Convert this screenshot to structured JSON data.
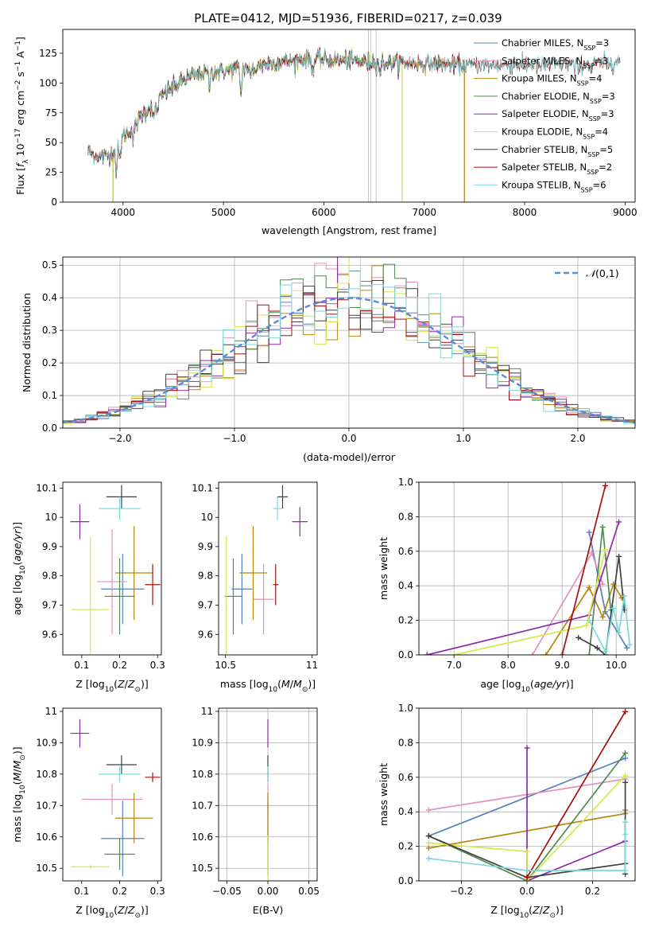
{
  "title": "PLATE=0412, MJD=51936, FIBERID=0217, z=0.039",
  "colors": {
    "chabrier_miles": "#5b7fb8",
    "salpeter_miles": "#e690c0",
    "kroupa_miles": "#b8860b",
    "chabrier_elodie": "#4f8a4f",
    "salpeter_elodie": "#8e2aa8",
    "kroupa_elodie": "#d4e84a",
    "chabrier_stelib": "#404040",
    "salpeter_stelib": "#a01010",
    "kroupa_stelib": "#7ed8d8",
    "normal": "#5a8ad8",
    "grid": "#b0b0b0"
  },
  "legend_labels": [
    "Chabrier MILES, N_SSP=3",
    "Salpeter MILES, N_SSP=3",
    "Kroupa MILES, N_SSP=4",
    "Chabrier ELODIE, N_SSP=3",
    "Salpeter ELODIE, N_SSP=3",
    "Kroupa ELODIE, N_SSP=4",
    "Chabrier STELIB, N_SSP=5",
    "Salpeter STELIB, N_SSP=2",
    "Kroupa STELIB, N_SSP=6"
  ],
  "legend_display": [
    {
      "main": "Chabrier MILES, N",
      "sub": "SSP",
      "tail": "=3"
    },
    {
      "main": "Salpeter MILES, N",
      "sub": "SSP",
      "tail": "=3"
    },
    {
      "main": "Kroupa MILES, N",
      "sub": "SSP",
      "tail": "=4"
    },
    {
      "main": "Chabrier ELODIE, N",
      "sub": "SSP",
      "tail": "=3"
    },
    {
      "main": "Salpeter ELODIE, N",
      "sub": "SSP",
      "tail": "=3"
    },
    {
      "main": "Kroupa ELODIE, N",
      "sub": "SSP",
      "tail": "=4"
    },
    {
      "main": "Chabrier STELIB, N",
      "sub": "SSP",
      "tail": "=5"
    },
    {
      "main": "Salpeter STELIB, N",
      "sub": "SSP",
      "tail": "=2"
    },
    {
      "main": "Kroupa STELIB, N",
      "sub": "SSP",
      "tail": "=6"
    }
  ],
  "chart_data": [
    {
      "id": "spectrum",
      "type": "line",
      "xlabel": "wavelength [Angstrom, rest frame]",
      "ylabel": "Flux [f_λ 10^-17 erg cm^-2 s^-1 A^-1]",
      "xlim": [
        3400,
        9100
      ],
      "ylim": [
        0,
        145
      ],
      "xticks": [
        4000,
        5000,
        6000,
        7000,
        8000,
        9000
      ],
      "yticks": [
        0,
        25,
        50,
        75,
        100,
        125
      ],
      "grid": false,
      "legend": "top-right",
      "continuum": {
        "x": [
          3650,
          3700,
          3800,
          3850,
          3900,
          3950,
          4000,
          4100,
          4200,
          4300,
          4400,
          4500,
          4600,
          4700,
          4800,
          4900,
          5000,
          5100,
          5200,
          5300,
          5400,
          5600,
          5800,
          6000,
          6200,
          6400,
          6600,
          6800,
          7000,
          7200,
          7400,
          7600,
          7800,
          8000,
          8200,
          8400,
          8600,
          8800,
          8950
        ],
        "y": [
          42,
          40,
          38,
          40,
          42,
          50,
          55,
          62,
          75,
          82,
          90,
          97,
          102,
          106,
          108,
          110,
          110,
          112,
          113,
          112,
          116,
          118,
          120,
          120,
          119,
          118,
          117,
          117,
          116,
          116,
          115,
          115,
          115,
          115,
          115,
          116,
          116,
          117,
          118
        ]
      },
      "absorption_lines": [
        {
          "x": 3934,
          "depth": 22
        },
        {
          "x": 3968,
          "depth": 18
        },
        {
          "x": 4102,
          "depth": 10
        },
        {
          "x": 4304,
          "depth": 15
        },
        {
          "x": 4340,
          "depth": 10
        },
        {
          "x": 4861,
          "depth": 12
        },
        {
          "x": 5175,
          "depth": 22
        },
        {
          "x": 5270,
          "depth": 8
        },
        {
          "x": 5893,
          "depth": 10
        },
        {
          "x": 6563,
          "depth": 8
        },
        {
          "x": 8500,
          "depth": 6
        },
        {
          "x": 8542,
          "depth": 7
        },
        {
          "x": 8662,
          "depth": 6
        }
      ],
      "model_ranges": [
        {
          "series": "chabrier_miles",
          "xmin": 3650,
          "xmax": 7400
        },
        {
          "series": "salpeter_miles",
          "xmin": 3650,
          "xmax": 7400
        },
        {
          "series": "kroupa_miles",
          "xmin": 3650,
          "xmax": 7400
        },
        {
          "series": "chabrier_elodie",
          "xmin": 3900,
          "xmax": 6780
        },
        {
          "series": "salpeter_elodie",
          "xmin": 3900,
          "xmax": 6780
        },
        {
          "series": "kroupa_elodie",
          "xmin": 3900,
          "xmax": 6780
        },
        {
          "series": "chabrier_stelib",
          "xmin": 3650,
          "xmax": 8950
        },
        {
          "series": "salpeter_stelib",
          "xmin": 3650,
          "xmax": 8950
        },
        {
          "series": "kroupa_stelib",
          "xmin": 3650,
          "xmax": 8950
        }
      ]
    },
    {
      "id": "residuals",
      "type": "line",
      "xlabel": "(data-model)/error",
      "ylabel": "Normed distribution",
      "xlim": [
        -2.5,
        2.5
      ],
      "ylim": [
        0,
        0.525
      ],
      "xticks": [
        -2,
        -1,
        0,
        1,
        2
      ],
      "yticks": [
        0.0,
        0.1,
        0.2,
        0.3,
        0.4,
        0.5
      ],
      "grid": true,
      "legend": "top-right",
      "legend_entry": "N(0,1)",
      "bin_width": 0.1,
      "gaussian": {
        "mean": 0,
        "sigma": 1
      },
      "histogram_amplitudes": [
        0.4,
        0.41,
        0.39,
        0.42,
        0.38,
        0.4,
        0.41,
        0.39,
        0.4
      ]
    },
    {
      "id": "age_vs_Z",
      "type": "scatter",
      "xlabel": "Z [log10(Z/Z_sun)]",
      "ylabel": "age [log10(age/yr)]",
      "xlim": [
        0.05,
        0.31
      ],
      "ylim": [
        9.53,
        10.12
      ],
      "xticks": [
        0.1,
        0.2,
        0.3
      ],
      "yticks": [
        9.6,
        9.7,
        9.8,
        9.9,
        10.0,
        10.1
      ],
      "grid": false,
      "points": [
        {
          "series": "chabrier_miles",
          "x": 0.208,
          "y": 9.755,
          "xerr": 0.057,
          "yerr": 0.12
        },
        {
          "series": "salpeter_miles",
          "x": 0.18,
          "y": 9.78,
          "xerr": 0.04,
          "yerr": 0.18
        },
        {
          "series": "kroupa_miles",
          "x": 0.238,
          "y": 9.81,
          "xerr": 0.05,
          "yerr": 0.16
        },
        {
          "series": "chabrier_elodie",
          "x": 0.2,
          "y": 9.73,
          "xerr": 0.04,
          "yerr": 0.13
        },
        {
          "series": "salpeter_elodie",
          "x": 0.095,
          "y": 9.985,
          "xerr": 0.025,
          "yerr": 0.06
        },
        {
          "series": "kroupa_elodie",
          "x": 0.123,
          "y": 9.685,
          "xerr": 0.05,
          "yerr": 0.25
        },
        {
          "series": "chabrier_stelib",
          "x": 0.205,
          "y": 10.07,
          "xerr": 0.04,
          "yerr": 0.04
        },
        {
          "series": "salpeter_stelib",
          "x": 0.287,
          "y": 9.77,
          "xerr": 0.02,
          "yerr": 0.07
        },
        {
          "series": "kroupa_stelib",
          "x": 0.2,
          "y": 10.03,
          "xerr": 0.055,
          "yerr": 0.04
        }
      ]
    },
    {
      "id": "age_vs_mass",
      "type": "scatter",
      "xlabel": "mass [log10(M/M_sun)]",
      "ylabel": "",
      "xlim": [
        10.46,
        11.03
      ],
      "ylim": [
        9.53,
        10.12
      ],
      "xticks": [
        10.5,
        11.0
      ],
      "yticks": [
        9.6,
        9.7,
        9.8,
        9.9,
        10.0,
        10.1
      ],
      "grid": false,
      "points": [
        {
          "series": "chabrier_miles",
          "x": 10.595,
          "y": 9.755,
          "xerr": 0.06,
          "yerr": 0.12
        },
        {
          "series": "salpeter_miles",
          "x": 10.72,
          "y": 9.72,
          "xerr": 0.06,
          "yerr": 0.12
        },
        {
          "series": "kroupa_miles",
          "x": 10.66,
          "y": 9.81,
          "xerr": 0.08,
          "yerr": 0.16
        },
        {
          "series": "chabrier_elodie",
          "x": 10.545,
          "y": 9.73,
          "xerr": 0.05,
          "yerr": 0.13
        },
        {
          "series": "salpeter_elodie",
          "x": 10.93,
          "y": 9.985,
          "xerr": 0.045,
          "yerr": 0.05
        },
        {
          "series": "kroupa_elodie",
          "x": 10.505,
          "y": 9.685,
          "xerr": 0.005,
          "yerr": 0.25
        },
        {
          "series": "chabrier_stelib",
          "x": 10.83,
          "y": 10.07,
          "xerr": 0.03,
          "yerr": 0.04
        },
        {
          "series": "salpeter_stelib",
          "x": 10.79,
          "y": 9.77,
          "xerr": 0.015,
          "yerr": 0.07
        },
        {
          "series": "kroupa_stelib",
          "x": 10.8,
          "y": 10.03,
          "xerr": 0.025,
          "yerr": 0.04
        }
      ]
    },
    {
      "id": "weight_vs_age",
      "type": "line",
      "xlabel": "age [log10(age/yr)]",
      "ylabel": "mass weight",
      "xlim": [
        6.35,
        10.35
      ],
      "ylim": [
        0,
        1.0
      ],
      "xticks": [
        7,
        8,
        9,
        10
      ],
      "yticks": [
        0.0,
        0.2,
        0.4,
        0.6,
        0.8,
        1.0
      ],
      "grid": true,
      "series": [
        {
          "series": "chabrier_miles",
          "x": [
            9.5,
            9.8,
            10.2
          ],
          "y": [
            0.71,
            0.25,
            0.04
          ]
        },
        {
          "series": "salpeter_miles",
          "x": [
            8.45,
            9.55,
            9.75
          ],
          "y": [
            0.0,
            0.59,
            0.41
          ]
        },
        {
          "series": "kroupa_miles",
          "x": [
            8.7,
            9.5,
            9.75,
            9.95,
            10.1
          ],
          "y": [
            0.0,
            0.39,
            0.22,
            0.41,
            0.33
          ]
        },
        {
          "series": "chabrier_elodie",
          "x": [
            9.5,
            9.75,
            9.9
          ],
          "y": [
            0.0,
            0.74,
            0.26
          ]
        },
        {
          "series": "salpeter_elodie",
          "x": [
            6.5,
            9.5,
            10.05
          ],
          "y": [
            0.0,
            0.23,
            0.77
          ]
        },
        {
          "series": "kroupa_elodie",
          "x": [
            7.0,
            9.45,
            9.8
          ],
          "y": [
            0.0,
            0.17,
            0.61
          ]
        },
        {
          "series": "chabrier_stelib",
          "x": [
            9.3,
            9.65,
            9.8,
            10.05,
            10.15
          ],
          "y": [
            0.1,
            0.04,
            0.0,
            0.57,
            0.26
          ]
        },
        {
          "series": "salpeter_stelib",
          "x": [
            9.0,
            9.8
          ],
          "y": [
            0.0,
            0.98
          ]
        },
        {
          "series": "kroupa_stelib",
          "x": [
            9.5,
            9.8,
            9.95,
            10.05,
            10.15,
            10.25
          ],
          "y": [
            0.2,
            0.02,
            0.27,
            0.13,
            0.34,
            0.06
          ]
        }
      ]
    },
    {
      "id": "mass_vs_Z",
      "type": "scatter",
      "xlabel": "Z [log10(Z/Z_sun)]",
      "ylabel": "mass [log10(M/M_sun)]",
      "xlim": [
        0.05,
        0.31
      ],
      "ylim": [
        10.46,
        11.01
      ],
      "xticks": [
        0.1,
        0.2,
        0.3
      ],
      "yticks": [
        10.5,
        10.6,
        10.7,
        10.8,
        10.9,
        11.0
      ],
      "grid": false,
      "points": [
        {
          "series": "chabrier_miles",
          "x": 0.208,
          "y": 10.595,
          "xerr": 0.057,
          "yerr": 0.12
        },
        {
          "series": "salpeter_miles",
          "x": 0.18,
          "y": 10.72,
          "xerr": 0.08,
          "yerr": 0.05
        },
        {
          "series": "kroupa_miles",
          "x": 0.238,
          "y": 10.66,
          "xerr": 0.05,
          "yerr": 0.08
        },
        {
          "series": "chabrier_elodie",
          "x": 0.2,
          "y": 10.545,
          "xerr": 0.04,
          "yerr": 0.05
        },
        {
          "series": "salpeter_elodie",
          "x": 0.095,
          "y": 10.93,
          "xerr": 0.025,
          "yerr": 0.045
        },
        {
          "series": "kroupa_elodie",
          "x": 0.123,
          "y": 10.505,
          "xerr": 0.05,
          "yerr": 0.005
        },
        {
          "series": "chabrier_stelib",
          "x": 0.205,
          "y": 10.83,
          "xerr": 0.04,
          "yerr": 0.03
        },
        {
          "series": "salpeter_stelib",
          "x": 0.287,
          "y": 10.79,
          "xerr": 0.02,
          "yerr": 0.015
        },
        {
          "series": "kroupa_stelib",
          "x": 0.2,
          "y": 10.8,
          "xerr": 0.055,
          "yerr": 0.025
        }
      ]
    },
    {
      "id": "mass_vs_ebv",
      "type": "scatter",
      "xlabel": "E(B-V)",
      "ylabel": "",
      "xlim": [
        -0.06,
        0.06
      ],
      "ylim": [
        10.46,
        11.01
      ],
      "xticks": [
        -0.05,
        0.0,
        0.05
      ],
      "yticks": [
        10.5,
        10.6,
        10.7,
        10.8,
        10.9,
        11.0
      ],
      "grid": true,
      "points": [
        {
          "series": "chabrier_miles",
          "x": 0.0,
          "y": 10.595,
          "xerr": 0,
          "yerr": 0.12
        },
        {
          "series": "salpeter_miles",
          "x": 0.0,
          "y": 10.72,
          "xerr": 0,
          "yerr": 0.05
        },
        {
          "series": "kroupa_miles",
          "x": 0.0,
          "y": 10.66,
          "xerr": 0,
          "yerr": 0.08
        },
        {
          "series": "chabrier_elodie",
          "x": 0.0,
          "y": 10.545,
          "xerr": 0,
          "yerr": 0.05
        },
        {
          "series": "salpeter_elodie",
          "x": 0.0,
          "y": 10.93,
          "xerr": 0,
          "yerr": 0.045
        },
        {
          "series": "kroupa_elodie",
          "x": 0.0,
          "y": 10.505,
          "xerr": 0,
          "yerr": 0.1
        },
        {
          "series": "chabrier_stelib",
          "x": 0.0,
          "y": 10.83,
          "xerr": 0,
          "yerr": 0.03
        },
        {
          "series": "salpeter_stelib",
          "x": 0.0,
          "y": 10.79,
          "xerr": 0,
          "yerr": 0.015
        },
        {
          "series": "kroupa_stelib",
          "x": 0.0,
          "y": 10.8,
          "xerr": 0,
          "yerr": 0.025
        }
      ]
    },
    {
      "id": "weight_vs_Z",
      "type": "line",
      "xlabel": "Z [log10(Z/Z_sun)]",
      "ylabel": "mass weight",
      "xlim": [
        -0.33,
        0.33
      ],
      "ylim": [
        0,
        1.0
      ],
      "xticks": [
        -0.2,
        0.0,
        0.2
      ],
      "yticks": [
        0.0,
        0.2,
        0.4,
        0.6,
        0.8,
        1.0
      ],
      "grid": true,
      "series": [
        {
          "series": "chabrier_miles",
          "x": [
            -0.3,
            0.3
          ],
          "y": [
            0.26,
            0.71
          ]
        },
        {
          "series": "salpeter_miles",
          "x": [
            -0.3,
            0.3
          ],
          "y": [
            0.41,
            0.59
          ]
        },
        {
          "series": "kroupa_miles",
          "x": [
            -0.3,
            0.3,
            0.3
          ],
          "y": [
            0.19,
            0.39,
            0.41
          ]
        },
        {
          "series": "chabrier_elodie",
          "x": [
            -0.3,
            0.0,
            0.3
          ],
          "y": [
            0.26,
            0.0,
            0.74
          ]
        },
        {
          "series": "salpeter_elodie",
          "x": [
            0.0,
            0.0,
            0.3
          ],
          "y": [
            0.77,
            0.0,
            0.23
          ]
        },
        {
          "series": "kroupa_elodie",
          "x": [
            -0.3,
            0.0,
            0.0,
            0.3
          ],
          "y": [
            0.22,
            0.17,
            0.0,
            0.61
          ]
        },
        {
          "series": "chabrier_stelib",
          "x": [
            -0.3,
            0.0,
            0.3,
            0.3,
            0.3
          ],
          "y": [
            0.26,
            0.02,
            0.1,
            0.57,
            0.04
          ]
        },
        {
          "series": "salpeter_stelib",
          "x": [
            0.0,
            0.3
          ],
          "y": [
            0.02,
            0.98
          ]
        },
        {
          "series": "kroupa_stelib",
          "x": [
            -0.3,
            0.0,
            0.3,
            0.3,
            0.3
          ],
          "y": [
            0.13,
            0.06,
            0.06,
            0.34,
            0.27
          ]
        }
      ]
    }
  ]
}
